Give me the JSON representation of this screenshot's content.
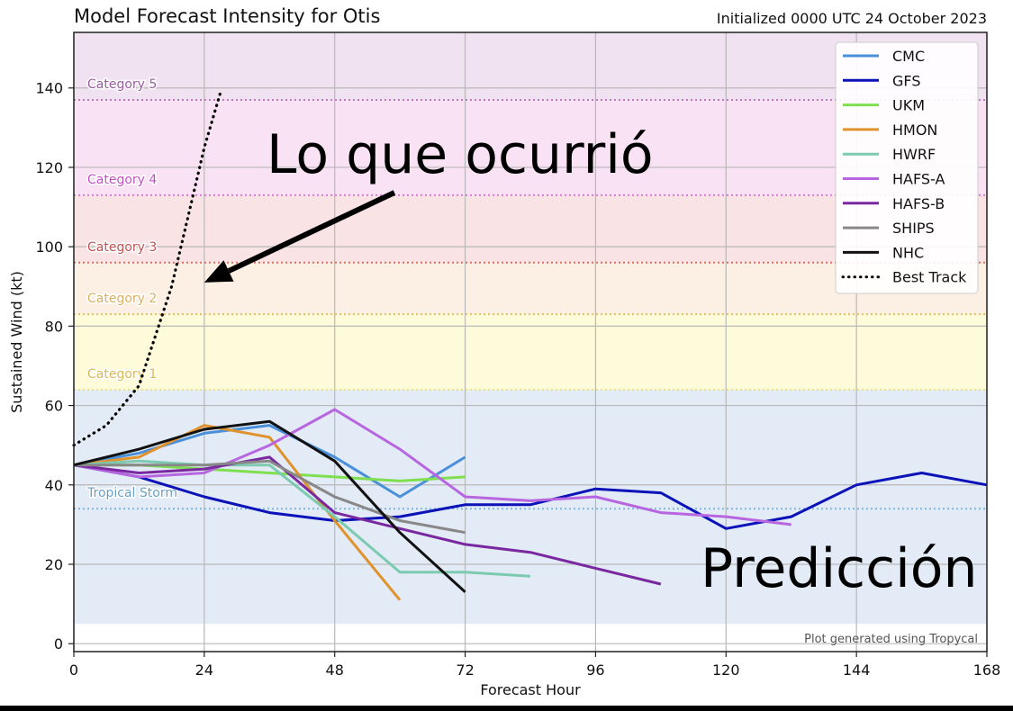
{
  "chart_data": {
    "type": "line",
    "title": "Model Forecast Intensity for Otis",
    "subtitle": "Initialized 0000 UTC 24 October 2023",
    "xlabel": "Forecast Hour",
    "ylabel": "Sustained Wind (kt)",
    "xlim": [
      0,
      168
    ],
    "ylim": [
      -2,
      154
    ],
    "x_ticks": [
      0,
      24,
      48,
      72,
      96,
      120,
      144,
      168
    ],
    "y_ticks": [
      0,
      20,
      40,
      60,
      80,
      100,
      120,
      140
    ],
    "grid": true,
    "legend_position": "top-right",
    "credit": "Plot generated using Tropycal",
    "category_bands": [
      {
        "label": "Tropical Storm",
        "threshold": 34,
        "band": [
          5,
          64
        ],
        "fill": "#e3ebf7",
        "line_color": "#7fb6e0",
        "label_color": "#6a9fbf"
      },
      {
        "label": "Category 1",
        "threshold": 64,
        "band": [
          64,
          83
        ],
        "fill": "#fdfbd9",
        "line_color": "#e8e27a",
        "label_color": "#d8b958"
      },
      {
        "label": "Category 2",
        "threshold": 83,
        "band": [
          83,
          96
        ],
        "fill": "#fbf0e3",
        "line_color": "#e8c060",
        "label_color": "#d9b060"
      },
      {
        "label": "Category 3",
        "threshold": 96,
        "band": [
          96,
          113
        ],
        "fill": "#f9e3e5",
        "line_color": "#e07060",
        "label_color": "#c05050"
      },
      {
        "label": "Category 4",
        "threshold": 113,
        "band": [
          113,
          137
        ],
        "fill": "#f8e2f4",
        "line_color": "#d878d8",
        "label_color": "#c050c0"
      },
      {
        "label": "Category 5",
        "threshold": 137,
        "band": [
          137,
          154
        ],
        "fill": "#f0e2f0",
        "line_color": "#c078c0",
        "label_color": "#9a5aa0"
      }
    ],
    "series": [
      {
        "name": "CMC",
        "color": "#4a90d9",
        "style": "solid",
        "x": [
          0,
          12,
          24,
          36,
          48,
          60,
          72
        ],
        "y": [
          45,
          48,
          53,
          55,
          47,
          37,
          47
        ]
      },
      {
        "name": "GFS",
        "color": "#0a12b8",
        "style": "solid",
        "x": [
          0,
          12,
          24,
          36,
          48,
          60,
          72,
          84,
          96,
          108,
          120,
          132,
          144,
          156,
          168
        ],
        "y": [
          45,
          42,
          37,
          33,
          31,
          32,
          35,
          35,
          39,
          38,
          29,
          32,
          40,
          43,
          40
        ]
      },
      {
        "name": "UKM",
        "color": "#7ee050",
        "style": "solid",
        "x": [
          0,
          12,
          24,
          36,
          48,
          60,
          72
        ],
        "y": [
          45,
          45,
          44,
          43,
          42,
          41,
          42
        ]
      },
      {
        "name": "HMON",
        "color": "#e0922c",
        "style": "solid",
        "x": [
          0,
          12,
          24,
          36,
          48,
          60
        ],
        "y": [
          45,
          47,
          55,
          52,
          31,
          11
        ]
      },
      {
        "name": "HWRF",
        "color": "#7ccab0",
        "style": "solid",
        "x": [
          0,
          12,
          24,
          36,
          48,
          60,
          72,
          84
        ],
        "y": [
          45,
          46,
          45,
          45,
          32,
          18,
          18,
          17
        ]
      },
      {
        "name": "HAFS-A",
        "color": "#b866e0",
        "style": "solid",
        "x": [
          0,
          12,
          24,
          36,
          48,
          60,
          72,
          84,
          96,
          108,
          120,
          132
        ],
        "y": [
          45,
          42,
          43,
          50,
          59,
          49,
          37,
          36,
          37,
          33,
          32,
          30
        ]
      },
      {
        "name": "HAFS-B",
        "color": "#7a28a0",
        "style": "solid",
        "x": [
          0,
          12,
          24,
          36,
          48,
          60,
          72,
          84,
          96,
          108
        ],
        "y": [
          45,
          43,
          44,
          47,
          33,
          29,
          25,
          23,
          19,
          15
        ]
      },
      {
        "name": "SHIPS",
        "color": "#888888",
        "style": "solid",
        "x": [
          0,
          12,
          24,
          36,
          48,
          60,
          72
        ],
        "y": [
          45,
          45,
          45,
          46,
          37,
          31,
          28
        ]
      },
      {
        "name": "NHC",
        "color": "#111111",
        "style": "solid",
        "x": [
          0,
          12,
          24,
          36,
          48,
          60,
          72
        ],
        "y": [
          45,
          49,
          54,
          56,
          46,
          28,
          13
        ]
      },
      {
        "name": "Best Track",
        "color": "#000000",
        "style": "dotted",
        "x": [
          0,
          6,
          12,
          18,
          24,
          27
        ],
        "y": [
          50,
          55,
          65,
          90,
          125,
          139
        ]
      }
    ],
    "annotations": [
      {
        "text": "Lo que ocurrió",
        "arrow_to": [
          24,
          91
        ]
      },
      {
        "text": "Predicción"
      }
    ]
  }
}
